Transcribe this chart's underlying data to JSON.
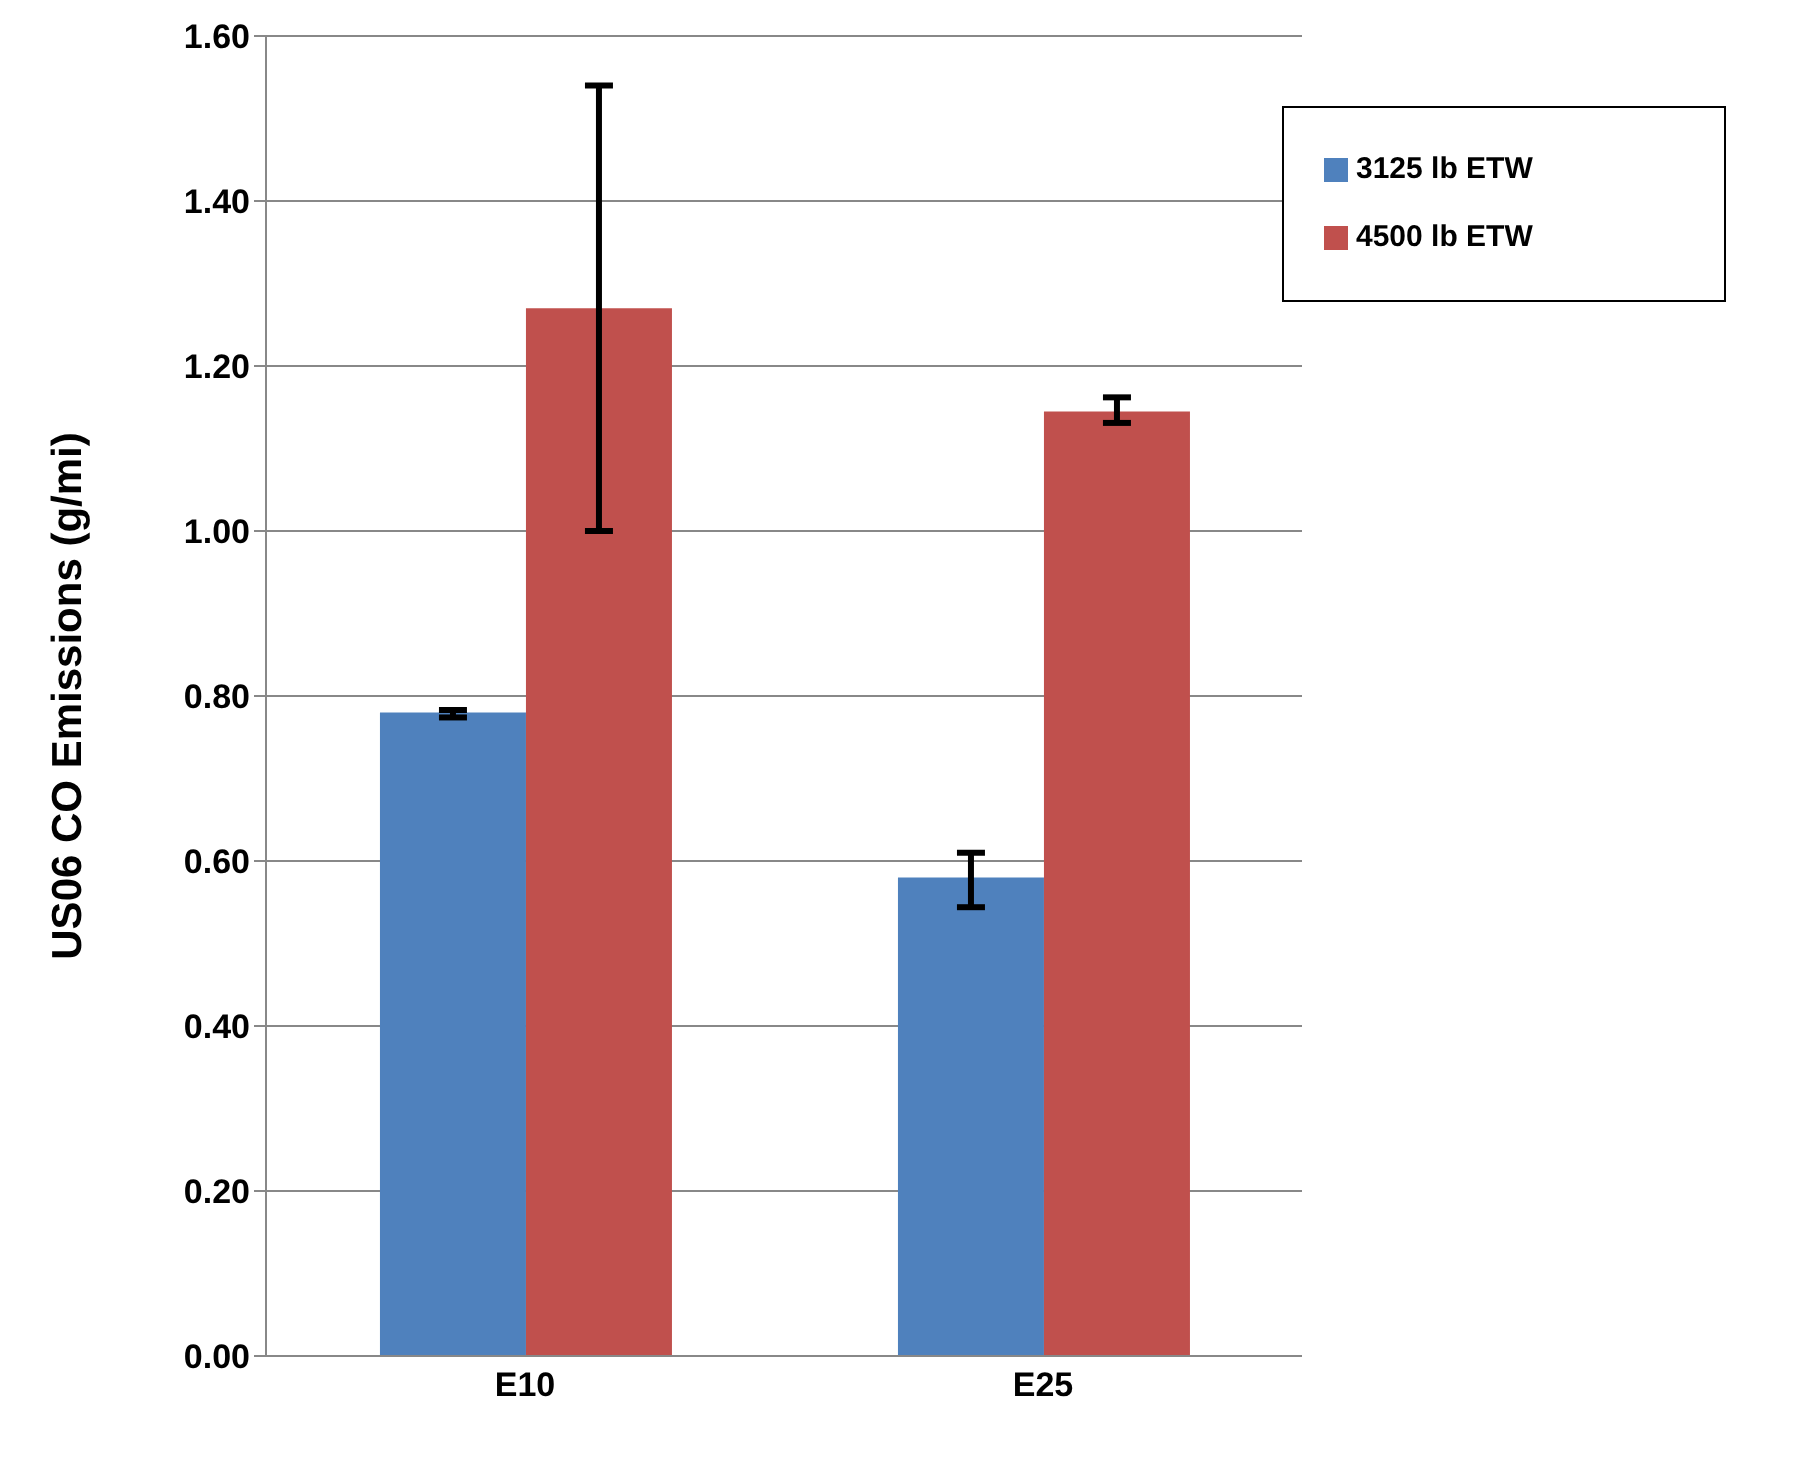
{
  "chart_data": {
    "type": "bar",
    "ylabel": "US06 CO Emissions (g/mi)",
    "categories": [
      "E10",
      "E25"
    ],
    "series": [
      {
        "name": "3125 lb ETW",
        "color": "#4f81bd",
        "values": [
          0.78,
          0.58
        ],
        "errors": [
          [
            0.774,
            0.783
          ],
          [
            0.544,
            0.61
          ]
        ]
      },
      {
        "name": "4500 lb ETW",
        "color": "#c0504d",
        "values": [
          1.27,
          1.145
        ],
        "errors": [
          [
            1.0,
            1.54
          ],
          [
            1.131,
            1.162
          ]
        ]
      }
    ],
    "ylim": [
      0,
      1.6
    ],
    "yticks": [
      {
        "value": 0,
        "label": "0.00"
      },
      {
        "value": 0.2,
        "label": "0.20"
      },
      {
        "value": 0.4,
        "label": "0.40"
      },
      {
        "value": 0.6,
        "label": "0.60"
      },
      {
        "value": 0.8,
        "label": "0.80"
      },
      {
        "value": 1.0,
        "label": "1.00"
      },
      {
        "value": 1.2,
        "label": "1.20"
      },
      {
        "value": 1.4,
        "label": "1.40"
      },
      {
        "value": 1.6,
        "label": "1.60"
      }
    ],
    "grid": "y",
    "legend": "top right"
  }
}
